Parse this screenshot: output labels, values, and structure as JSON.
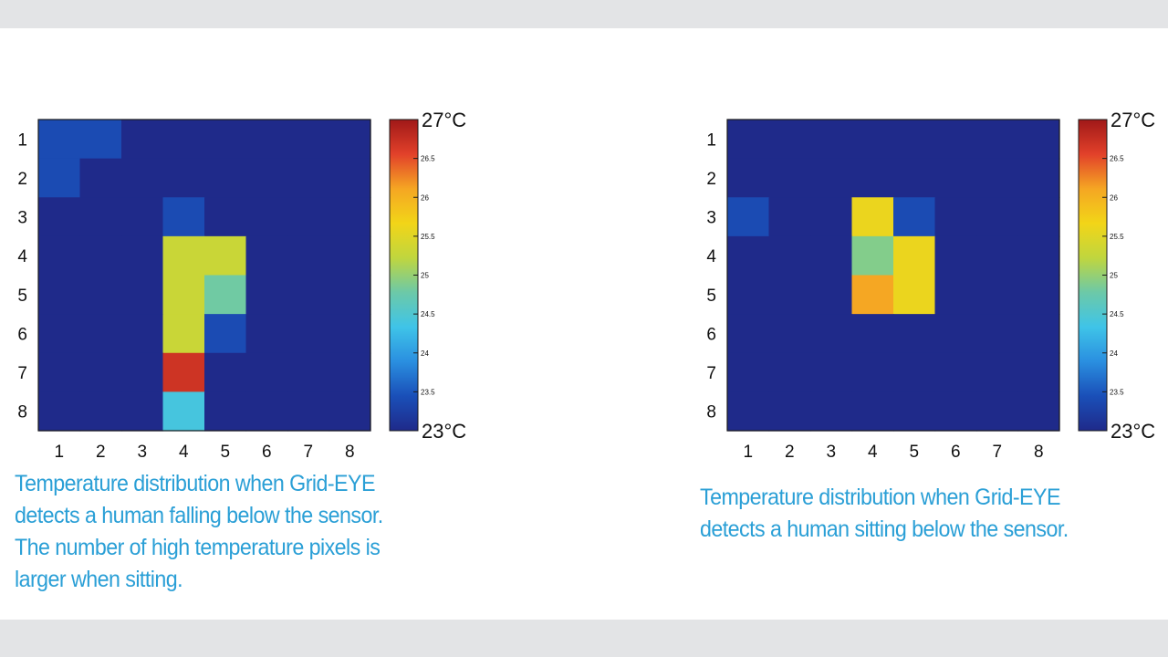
{
  "colors": {
    "page_background": "#e3e4e6",
    "panel_background": "#ffffff",
    "caption_text": "#2a9fd6",
    "colormap": [
      "#1f2a8a",
      "#1a4fb8",
      "#2a8fe0",
      "#3fc4e8",
      "#6cc9a8",
      "#c0d63e",
      "#f2d518",
      "#f5a623",
      "#e2412a",
      "#a01818"
    ]
  },
  "chart_data": [
    {
      "type": "heatmap",
      "x": [
        1,
        2,
        3,
        4,
        5,
        6,
        7,
        8
      ],
      "y": [
        1,
        2,
        3,
        4,
        5,
        6,
        7,
        8
      ],
      "xticks": [
        "1",
        "2",
        "3",
        "4",
        "5",
        "6",
        "7",
        "8"
      ],
      "yticks": [
        "1",
        "2",
        "3",
        "4",
        "5",
        "6",
        "7",
        "8"
      ],
      "values": [
        [
          23.4,
          23.4,
          23.0,
          23.0,
          23.0,
          23.0,
          23.0,
          23.0
        ],
        [
          23.4,
          23.0,
          23.0,
          23.0,
          23.0,
          23.0,
          23.0,
          23.0
        ],
        [
          23.0,
          23.0,
          23.0,
          23.4,
          23.0,
          23.0,
          23.0,
          23.0
        ],
        [
          23.0,
          23.0,
          23.0,
          25.3,
          25.3,
          23.0,
          23.0,
          23.0
        ],
        [
          23.0,
          23.0,
          23.0,
          25.3,
          24.8,
          23.0,
          23.0,
          23.0
        ],
        [
          23.0,
          23.0,
          23.0,
          25.3,
          23.4,
          23.0,
          23.0,
          23.0
        ],
        [
          23.0,
          23.0,
          23.0,
          26.7,
          23.0,
          23.0,
          23.0,
          23.0
        ],
        [
          23.0,
          23.0,
          23.0,
          24.4,
          23.0,
          23.0,
          23.0,
          23.0
        ]
      ],
      "vmin": 23,
      "vmax": 27,
      "colorbar": {
        "max_label": "27°C",
        "min_label": "23°C",
        "ticks": [
          26.5,
          26,
          25.5,
          25,
          24.5,
          24,
          23.5
        ],
        "tick_labels": [
          "26.5",
          "26",
          "25.5",
          "25",
          "24.5",
          "24",
          "23.5"
        ]
      },
      "caption": [
        "Temperature distribution when Grid-EYE",
        "detects a human falling below the sensor.",
        "The number of high temperature pixels is",
        "larger when sitting."
      ]
    },
    {
      "type": "heatmap",
      "x": [
        1,
        2,
        3,
        4,
        5,
        6,
        7,
        8
      ],
      "y": [
        1,
        2,
        3,
        4,
        5,
        6,
        7,
        8
      ],
      "xticks": [
        "1",
        "2",
        "3",
        "4",
        "5",
        "6",
        "7",
        "8"
      ],
      "yticks": [
        "1",
        "2",
        "3",
        "4",
        "5",
        "6",
        "7",
        "8"
      ],
      "values": [
        [
          23.0,
          23.0,
          23.0,
          23.0,
          23.0,
          23.0,
          23.0,
          23.0
        ],
        [
          23.0,
          23.0,
          23.0,
          23.0,
          23.0,
          23.0,
          23.0,
          23.0
        ],
        [
          23.4,
          23.0,
          23.0,
          25.6,
          23.4,
          23.0,
          23.0,
          23.0
        ],
        [
          23.0,
          23.0,
          23.0,
          24.9,
          25.6,
          23.0,
          23.0,
          23.0
        ],
        [
          23.0,
          23.0,
          23.0,
          26.1,
          25.6,
          23.0,
          23.0,
          23.0
        ],
        [
          23.0,
          23.0,
          23.0,
          23.0,
          23.0,
          23.0,
          23.0,
          23.0
        ],
        [
          23.0,
          23.0,
          23.0,
          23.0,
          23.0,
          23.0,
          23.0,
          23.0
        ],
        [
          23.0,
          23.0,
          23.0,
          23.0,
          23.0,
          23.0,
          23.0,
          23.0
        ]
      ],
      "vmin": 23,
      "vmax": 27,
      "colorbar": {
        "max_label": "27°C",
        "min_label": "23°C",
        "ticks": [
          26.5,
          26,
          25.5,
          25,
          24.5,
          24,
          23.5
        ],
        "tick_labels": [
          "26.5",
          "26",
          "25.5",
          "25",
          "24.5",
          "24",
          "23.5"
        ]
      },
      "caption": [
        "Temperature distribution when Grid-EYE",
        "detects a human sitting below the sensor."
      ]
    }
  ]
}
